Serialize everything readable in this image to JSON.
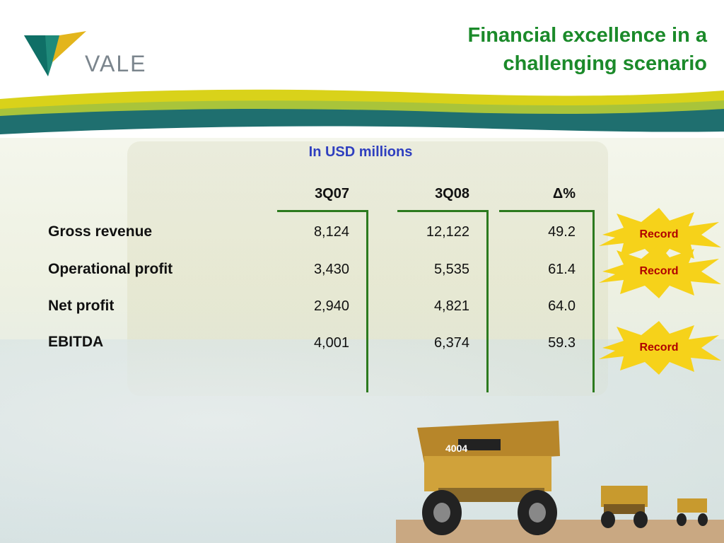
{
  "brand": {
    "name": "VALE",
    "colors": {
      "green": "#1b8a2a",
      "teal": "#1f6f6f",
      "yellow": "#d9d21a",
      "blue": "#2f3fbf"
    }
  },
  "header": {
    "title_line1": "Financial excellence in a",
    "title_line2": "challenging scenario"
  },
  "subtitle": "In USD millions",
  "table": {
    "columns": [
      "3Q07",
      "3Q08",
      "Δ%"
    ],
    "rows": [
      {
        "label": "Gross revenue",
        "q07": "8,124",
        "q08": "12,122",
        "delta": "49.2",
        "badge": "Record"
      },
      {
        "label": "Operational profit",
        "q07": "3,430",
        "q08": "5,535",
        "delta": "61.4",
        "badge": "Record"
      },
      {
        "label": "Net profit",
        "q07": "2,940",
        "q08": "4,821",
        "delta": "64.0",
        "badge": ""
      },
      {
        "label": "EBITDA",
        "q07": "4,001",
        "q08": "6,374",
        "delta": "59.3",
        "badge": "Record"
      }
    ]
  },
  "photo_labels": {
    "truck_number": "4004"
  },
  "icons": [
    "vale-logo-icon",
    "starburst-icon",
    "mining-truck-icon"
  ]
}
